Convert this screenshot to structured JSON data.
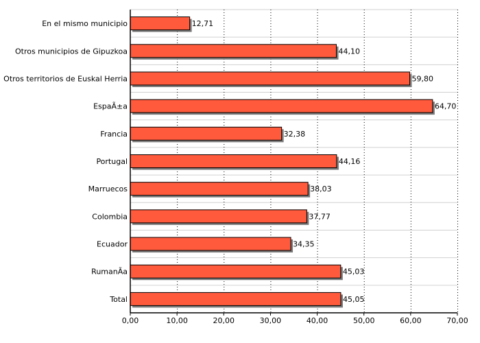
{
  "chart_data": {
    "type": "bar",
    "orientation": "horizontal",
    "categories": [
      "En el mismo municipio",
      "Otros municipios de Gipuzkoa",
      "Otros territorios de Euskal Herria",
      "EspaÃ±a",
      "Francia",
      "Portugal",
      "Marruecos",
      "Colombia",
      "Ecuador",
      "RumanÃ­a",
      "Total"
    ],
    "values": [
      12.71,
      44.1,
      59.8,
      64.7,
      32.38,
      44.16,
      38.03,
      37.77,
      34.35,
      45.03,
      45.05
    ],
    "value_labels": [
      "12,71",
      "44,10",
      "59,80",
      "64,70",
      "32,38",
      "44,16",
      "38,03",
      "37,77",
      "34,35",
      "45,03",
      "45,05"
    ],
    "xlim": [
      0,
      70
    ],
    "x_ticks": [
      0,
      10,
      20,
      30,
      40,
      50,
      60,
      70
    ],
    "x_tick_labels": [
      "0,00",
      "10,00",
      "20,00",
      "30,00",
      "40,00",
      "50,00",
      "60,00",
      "70,00"
    ],
    "title": "",
    "xlabel": "",
    "ylabel": "",
    "grid": true,
    "colors": {
      "bar": "#ff5a3c",
      "bar_edge": "#000000",
      "shadow": "#7a7a7a",
      "grid": "#000000",
      "row_line": "#d0d0d0"
    }
  }
}
